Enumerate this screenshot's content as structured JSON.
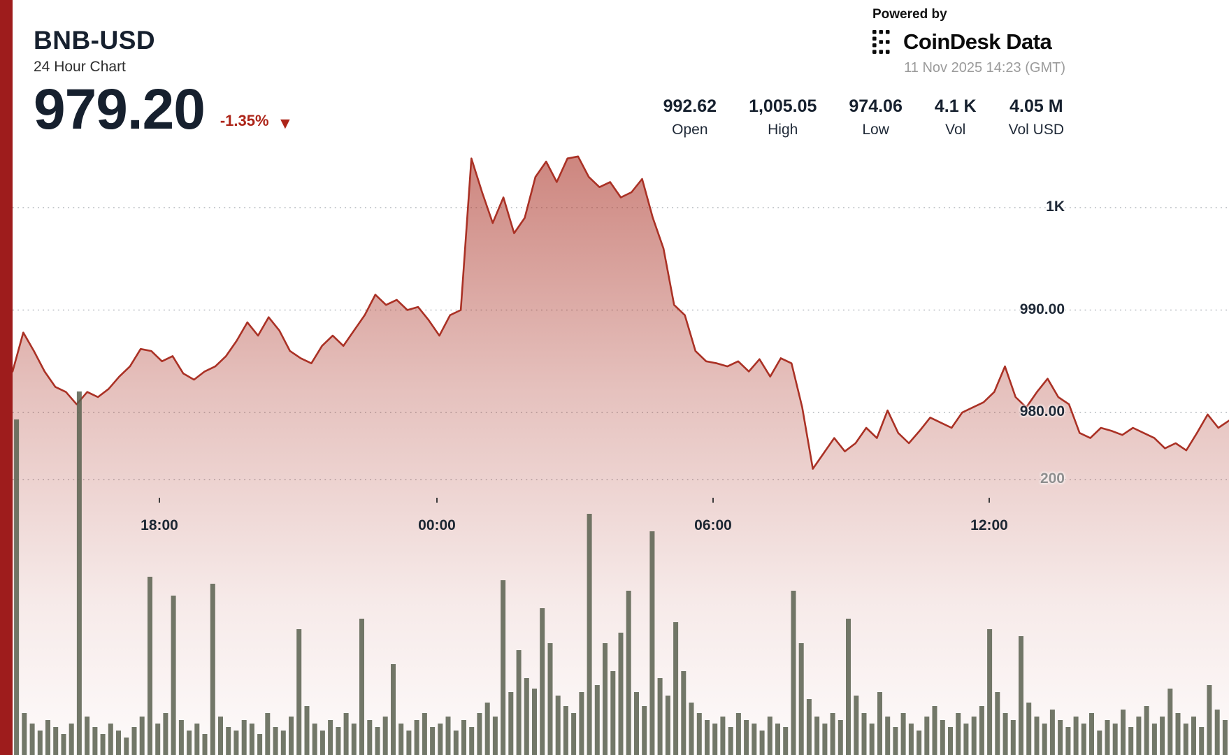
{
  "header": {
    "symbol": "BNB-USD",
    "subtitle": "24 Hour Chart",
    "price": "979.20",
    "change": "-1.35%",
    "change_direction": "down",
    "triangle": "▼"
  },
  "branding": {
    "powered_by": "Powered by",
    "logo_text": "CoinDesk Data",
    "timestamp": "11 Nov 2025 14:23 (GMT)"
  },
  "stats": [
    {
      "value": "992.62",
      "label": "Open"
    },
    {
      "value": "1,005.05",
      "label": "High"
    },
    {
      "value": "974.06",
      "label": "Low"
    },
    {
      "value": "4.1 K",
      "label": "Vol"
    },
    {
      "value": "4.05 M",
      "label": "Vol USD"
    }
  ],
  "colors": {
    "accent_red": "#9e1c1c",
    "line_red": "#aa3125",
    "change_red": "#ad2519",
    "dark_text": "#16202e",
    "muted_text": "#9b9b9b",
    "volume_bar": "#59604f",
    "grid": "#9aa0a6"
  },
  "chart_data": {
    "type": "area",
    "symbol": "BNB-USD",
    "title": "24 Hour Chart",
    "current_price": 979.2,
    "change_pct": -1.35,
    "open": 992.62,
    "high": 1005.05,
    "low": 974.06,
    "volume_label": "4.1 K",
    "volume_usd_label": "4.05 M",
    "y_axis_visible_range": [
      974,
      1006
    ],
    "grid": true,
    "y_ticks": [
      {
        "label": "1K",
        "value": 1000
      },
      {
        "label": "990.00",
        "value": 990
      },
      {
        "label": "980.00",
        "value": 980
      }
    ],
    "volume_tick": {
      "label": "200",
      "value": 200
    },
    "x_ticks": [
      "18:00",
      "00:00",
      "06:00",
      "12:00"
    ],
    "prices": [
      984.0,
      987.8,
      986.0,
      984.0,
      982.5,
      982.0,
      980.8,
      982.0,
      981.5,
      982.3,
      983.5,
      984.5,
      986.2,
      986.0,
      985.0,
      985.5,
      983.8,
      983.2,
      984.0,
      984.5,
      985.5,
      987.0,
      988.8,
      987.5,
      989.3,
      988.0,
      986.0,
      985.3,
      984.8,
      986.5,
      987.5,
      986.5,
      988.0,
      989.5,
      991.5,
      990.5,
      991.0,
      990.0,
      990.3,
      989.0,
      987.5,
      989.5,
      990.0,
      1004.8,
      1001.5,
      998.5,
      1001.0,
      997.5,
      999.0,
      1003.0,
      1004.5,
      1002.5,
      1004.8,
      1005.0,
      1003.0,
      1002.0,
      1002.5,
      1001.0,
      1001.5,
      1002.8,
      999.0,
      996.0,
      990.5,
      989.5,
      986.0,
      985.0,
      984.8,
      984.5,
      985.0,
      984.0,
      985.2,
      983.5,
      985.3,
      984.8,
      980.5,
      974.5,
      976.0,
      977.5,
      976.2,
      977.0,
      978.5,
      977.5,
      980.2,
      978.0,
      977.0,
      978.2,
      979.5,
      979.0,
      978.5,
      980.0,
      980.5,
      981.0,
      982.0,
      984.5,
      981.5,
      980.5,
      982.0,
      983.3,
      981.5,
      980.8,
      978.0,
      977.5,
      978.5,
      978.2,
      977.8,
      978.5,
      978.0,
      977.5,
      976.5,
      977.0,
      976.3,
      978.0,
      979.8,
      978.5,
      979.2
    ],
    "volumes": [
      480,
      60,
      45,
      35,
      50,
      40,
      30,
      45,
      520,
      55,
      40,
      30,
      45,
      35,
      25,
      40,
      55,
      255,
      45,
      60,
      228,
      50,
      35,
      45,
      30,
      245,
      55,
      40,
      35,
      50,
      45,
      30,
      60,
      40,
      35,
      55,
      180,
      70,
      45,
      35,
      50,
      40,
      60,
      45,
      195,
      50,
      40,
      55,
      130,
      45,
      35,
      50,
      60,
      40,
      45,
      55,
      35,
      50,
      40,
      60,
      75,
      55,
      250,
      90,
      150,
      110,
      95,
      210,
      160,
      85,
      70,
      60,
      90,
      345,
      100,
      160,
      120,
      175,
      235,
      90,
      70,
      320,
      110,
      85,
      190,
      120,
      75,
      60,
      50,
      45,
      55,
      40,
      60,
      50,
      45,
      35,
      55,
      45,
      40,
      235,
      160,
      80,
      55,
      45,
      60,
      50,
      195,
      85,
      60,
      45,
      90,
      55,
      40,
      60,
      45,
      35,
      55,
      70,
      50,
      40,
      60,
      45,
      55,
      70,
      180,
      90,
      60,
      50,
      170,
      75,
      55,
      45,
      65,
      50,
      40,
      55,
      45,
      60,
      35,
      50,
      45,
      65,
      40,
      55,
      70,
      45,
      55,
      95,
      60,
      45,
      55,
      40,
      100,
      65,
      50
    ]
  }
}
